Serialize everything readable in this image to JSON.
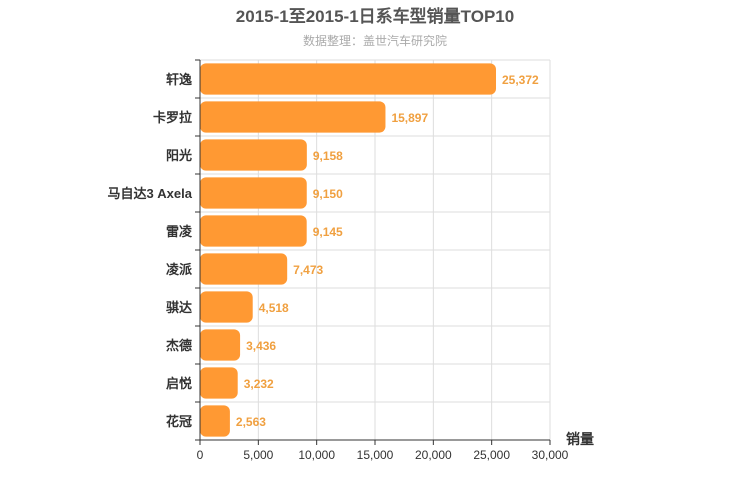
{
  "chart_data": {
    "type": "bar",
    "orientation": "horizontal",
    "title": "2015-1至2015-1日系车型销量TOP10",
    "subtitle": "数据整理：盖世汽车研究院",
    "categories": [
      "轩逸",
      "卡罗拉",
      "阳光",
      "马自达3 Axela",
      "雷凌",
      "凌派",
      "骐达",
      "杰德",
      "启悦",
      "花冠"
    ],
    "values": [
      25372,
      15897,
      9158,
      9150,
      9145,
      7473,
      4518,
      3436,
      3232,
      2563
    ],
    "value_labels": [
      "25,372",
      "15,897",
      "9,158",
      "9,150",
      "9,145",
      "7,473",
      "4,518",
      "3,436",
      "3,232",
      "2,563"
    ],
    "xlabel": "销量",
    "ylabel": "",
    "xlim": [
      0,
      30000
    ],
    "ticks": [
      0,
      5000,
      10000,
      15000,
      20000,
      25000,
      30000
    ],
    "tick_labels": [
      "0",
      "5,000",
      "10,000",
      "15,000",
      "20,000",
      "25,000",
      "30,000"
    ],
    "grid": true,
    "bar_color": "#ff9933",
    "grid_color": "#dddddd",
    "label_color": "#f0a040"
  }
}
